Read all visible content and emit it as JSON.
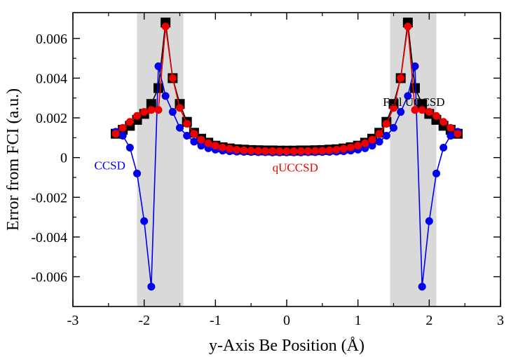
{
  "chart_data": {
    "type": "line",
    "title": "",
    "xlabel": "y-Axis Be Position (Å)",
    "ylabel": "Error from FCI (a.u.)",
    "xlim": [
      -3,
      3
    ],
    "ylim": [
      -0.0075,
      0.0073
    ],
    "xticks": [
      -3,
      -2,
      -1,
      0,
      1,
      2,
      3
    ],
    "xtick_labels": [
      "-3",
      "-2",
      "-1",
      "0",
      "1",
      "2",
      "3"
    ],
    "yticks": [
      -0.006,
      -0.004,
      -0.002,
      0,
      0.002,
      0.004,
      0.006
    ],
    "ytick_labels": [
      "-0.006",
      "-0.004",
      "-0.002",
      "0",
      "0.002",
      "0.004",
      "0.006"
    ],
    "grid": false,
    "shaded_regions": [
      {
        "x0": -2.1,
        "x1": -1.45,
        "color": "#d9d9d9"
      },
      {
        "x0": 1.45,
        "x1": 2.1,
        "color": "#d9d9d9"
      }
    ],
    "x": [
      -2.4,
      -2.3,
      -2.2,
      -2.1,
      -2.0,
      -1.9,
      -1.8,
      -1.7,
      -1.6,
      -1.5,
      -1.4,
      -1.3,
      -1.2,
      -1.1,
      -1.0,
      -0.9,
      -0.8,
      -0.7,
      -0.6,
      -0.5,
      -0.4,
      -0.3,
      -0.2,
      -0.1,
      0.0,
      0.1,
      0.2,
      0.3,
      0.4,
      0.5,
      0.6,
      0.7,
      0.8,
      0.9,
      1.0,
      1.1,
      1.2,
      1.3,
      1.4,
      1.5,
      1.6,
      1.7,
      1.8,
      1.9,
      2.0,
      2.1,
      2.2,
      2.3,
      2.4
    ],
    "series": [
      {
        "name": "Full UCCSD",
        "color": "#000000",
        "marker": "square",
        "values": [
          0.0012,
          0.0014,
          0.0016,
          0.0019,
          0.0022,
          0.0027,
          0.0035,
          0.0068,
          0.004,
          0.0027,
          0.0018,
          0.00125,
          0.00095,
          0.00075,
          0.0006,
          0.00052,
          0.00046,
          0.00042,
          0.0004,
          0.00038,
          0.00037,
          0.00036,
          0.00036,
          0.00035,
          0.00035,
          0.00035,
          0.00036,
          0.00036,
          0.00037,
          0.00038,
          0.0004,
          0.00042,
          0.00046,
          0.00052,
          0.0006,
          0.00075,
          0.00095,
          0.00125,
          0.0018,
          0.0027,
          0.004,
          0.0068,
          0.0035,
          0.0027,
          0.0022,
          0.0019,
          0.0016,
          0.0014,
          0.0012
        ]
      },
      {
        "name": "CCSD",
        "color": "#0000ee",
        "marker": "circle",
        "values": [
          0.0013,
          0.0011,
          0.0005,
          -0.0008,
          -0.0032,
          -0.0065,
          0.0046,
          0.0031,
          0.0023,
          0.0015,
          0.0011,
          0.0008,
          0.0006,
          0.00047,
          0.0004,
          0.00035,
          0.00032,
          0.0003,
          0.00029,
          0.00028,
          0.00027,
          0.00027,
          0.00026,
          0.00026,
          0.00026,
          0.00026,
          0.00026,
          0.00027,
          0.00027,
          0.00028,
          0.00029,
          0.0003,
          0.00032,
          0.00035,
          0.0004,
          0.00047,
          0.0006,
          0.0008,
          0.0011,
          0.0015,
          0.0023,
          0.0031,
          0.0046,
          -0.0065,
          -0.0032,
          -0.0008,
          0.0005,
          0.0011,
          0.0013
        ]
      },
      {
        "name": "qUCCSD",
        "color": "#ee0000",
        "marker": "circle",
        "values": [
          0.0012,
          0.0015,
          0.0018,
          0.0021,
          0.0023,
          0.0024,
          0.0024,
          0.0066,
          0.004,
          0.0025,
          0.0017,
          0.0012,
          0.0009,
          0.00072,
          0.0006,
          0.00051,
          0.00045,
          0.0004,
          0.00037,
          0.00035,
          0.00034,
          0.00033,
          0.00033,
          0.00032,
          0.00032,
          0.00032,
          0.00033,
          0.00033,
          0.00034,
          0.00035,
          0.00037,
          0.0004,
          0.00045,
          0.00051,
          0.0006,
          0.00072,
          0.0009,
          0.0012,
          0.0017,
          0.0025,
          0.004,
          0.0066,
          0.0024,
          0.0024,
          0.0023,
          0.0021,
          0.0018,
          0.0015,
          0.0012
        ]
      }
    ],
    "annotations": [
      {
        "text": "Full UCCSD",
        "x": 1.35,
        "y": 0.0026,
        "color": "#000000"
      },
      {
        "text": "CCSD",
        "x": -2.7,
        "y": -0.0006,
        "color": "#0000ee"
      },
      {
        "text": "qUCCSD",
        "x": -0.2,
        "y": -0.0007,
        "color": "#ee0000"
      }
    ]
  }
}
